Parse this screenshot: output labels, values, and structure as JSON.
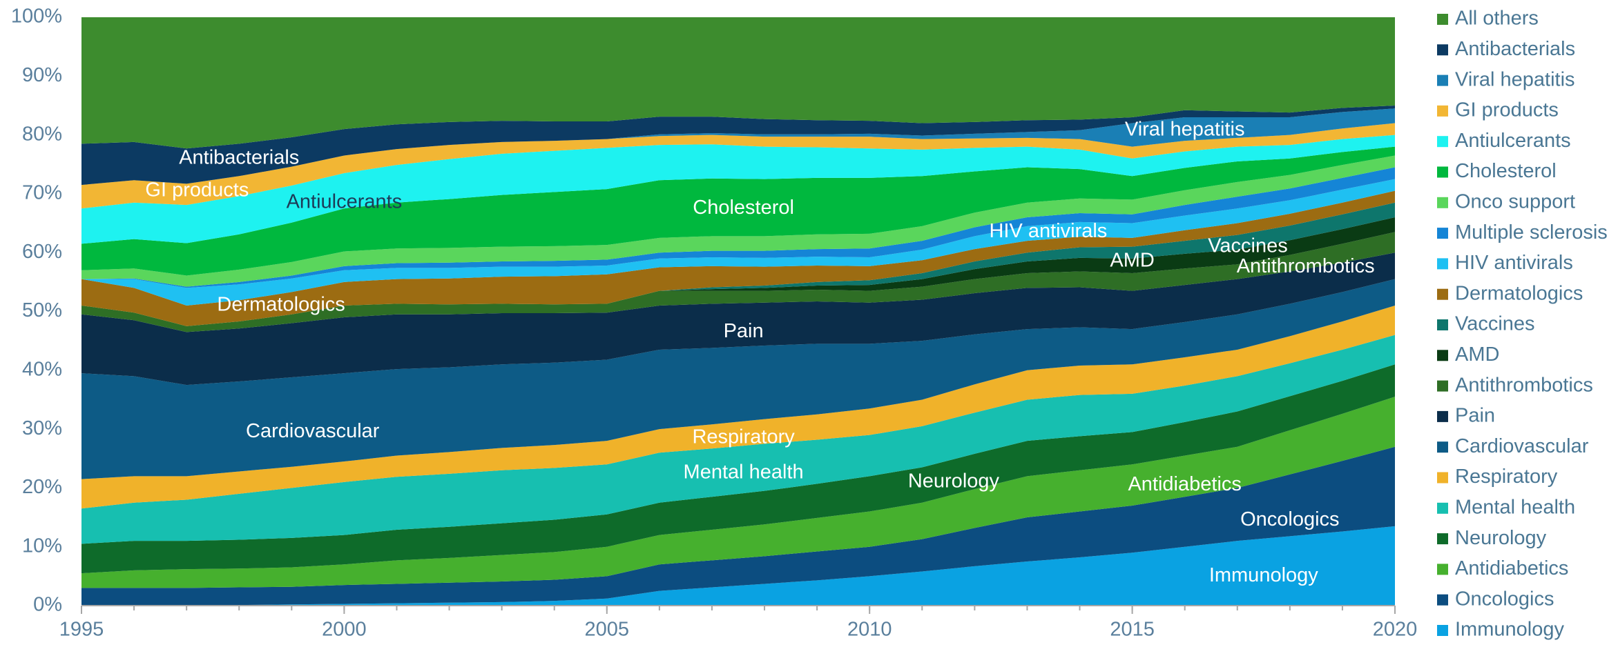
{
  "chart_data": {
    "type": "stacked_area",
    "x": [
      1995,
      1996,
      1997,
      1998,
      1999,
      2000,
      2001,
      2002,
      2003,
      2004,
      2005,
      2006,
      2007,
      2008,
      2009,
      2010,
      2011,
      2012,
      2013,
      2014,
      2015,
      2016,
      2017,
      2018,
      2019,
      2020
    ],
    "xlim": [
      1995,
      2020
    ],
    "xticks": [
      1995,
      2000,
      2005,
      2010,
      2015,
      2020
    ],
    "ylim": [
      0,
      100
    ],
    "yticks": [
      {
        "value": 0,
        "label": "0%"
      },
      {
        "value": 10,
        "label": "10%"
      },
      {
        "value": 20,
        "label": "20%"
      },
      {
        "value": 30,
        "label": "30%"
      },
      {
        "value": 40,
        "label": "40%"
      },
      {
        "value": 50,
        "label": "50%"
      },
      {
        "value": 60,
        "label": "60%"
      },
      {
        "value": 70,
        "label": "70%"
      },
      {
        "value": 80,
        "label": "80%"
      },
      {
        "value": 90,
        "label": "90%"
      },
      {
        "value": 100,
        "label": "100%"
      }
    ],
    "legend": "right",
    "series": [
      {
        "name": "All others",
        "color": "#3d8c2e",
        "values": [
          21.5,
          21.2,
          22.3,
          21.5,
          20.4,
          19,
          18.2,
          17.8,
          17.6,
          17.7,
          17.7,
          16.9,
          16.9,
          17.3,
          17.5,
          17.6,
          18,
          17.8,
          17.5,
          17.4,
          17,
          15.8,
          16,
          16.2,
          15.4,
          15
        ]
      },
      {
        "name": "Antibacterials",
        "color": "#0c3a62",
        "values": [
          7,
          6.5,
          6,
          5.5,
          5,
          4.5,
          4.2,
          3.9,
          3.6,
          3.3,
          3,
          3,
          2.8,
          2.6,
          2.4,
          2.2,
          2.1,
          2,
          2,
          1.8,
          1,
          1.2,
          1,
          0.8,
          0.7,
          0.5
        ]
      },
      {
        "name": "Viral hepatitis",
        "color": "#1a7fb5",
        "values": [
          0,
          0,
          0,
          0,
          0,
          0,
          0,
          0,
          0,
          0,
          0,
          0.3,
          0.3,
          0.4,
          0.4,
          0.5,
          0.6,
          0.8,
          1,
          1.5,
          4,
          4,
          3.5,
          3,
          2.8,
          2.5
        ]
      },
      {
        "name": "GI products",
        "color": "#f2b634",
        "values": [
          4,
          3.8,
          3.6,
          3.4,
          3.2,
          3,
          2.7,
          2.4,
          2,
          1.7,
          1.5,
          1.5,
          1.6,
          1.7,
          1.8,
          2,
          1.8,
          1.6,
          1.5,
          1.8,
          2,
          1.8,
          1.5,
          1.7,
          1.8,
          2
        ]
      },
      {
        "name": "Antiulcerants",
        "color": "#1ef2f0",
        "values": [
          6,
          6.2,
          6.5,
          6.5,
          6.3,
          6,
          6.4,
          6.8,
          7,
          7,
          7,
          6,
          5.8,
          5.5,
          5.2,
          5,
          4.5,
          4,
          3.5,
          3.3,
          3,
          2.8,
          2.5,
          2.3,
          2.2,
          2
        ]
      },
      {
        "name": "Cholesterol",
        "color": "#00b83e",
        "values": [
          4.5,
          5,
          5.5,
          6,
          6.7,
          7.3,
          7.8,
          8.3,
          8.8,
          9.2,
          9.5,
          9.8,
          9.8,
          9.7,
          9.6,
          9.5,
          8.5,
          7,
          6,
          5,
          4,
          3.8,
          3.5,
          2.8,
          2.2,
          1.5
        ]
      },
      {
        "name": "Onco support",
        "color": "#5ad65c",
        "values": [
          1.5,
          1.7,
          1.9,
          2.1,
          2.3,
          2.5,
          2.5,
          2.5,
          2.5,
          2.5,
          2.5,
          2.5,
          2.5,
          2.5,
          2.5,
          2.5,
          2.5,
          2.5,
          2.5,
          2.5,
          2.5,
          2.5,
          2.5,
          2.3,
          2.2,
          2
        ]
      },
      {
        "name": "Multiple sclerosis",
        "color": "#1585d6",
        "values": [
          0,
          0.1,
          0.2,
          0.4,
          0.5,
          0.7,
          0.8,
          0.9,
          0.9,
          1,
          1,
          1,
          1.1,
          1.2,
          1.3,
          1.5,
          1.5,
          1.5,
          1.5,
          1.5,
          1.5,
          1.8,
          2,
          2,
          2,
          2
        ]
      },
      {
        "name": "HIV antivirals",
        "color": "#1fc0f2",
        "values": [
          0,
          1.5,
          3,
          2.7,
          2.3,
          2,
          1.9,
          1.8,
          1.7,
          1.6,
          1.5,
          1.5,
          1.5,
          1.5,
          1.5,
          1.5,
          1.8,
          2.2,
          2.5,
          2.5,
          2.5,
          2.5,
          2.5,
          2.3,
          2.2,
          2
        ]
      },
      {
        "name": "Dermatologics",
        "color": "#9c6c12",
        "values": [
          4.5,
          4.2,
          3.5,
          3.6,
          3.8,
          4,
          4.2,
          4.4,
          4.6,
          4.8,
          5,
          4,
          3.6,
          3.2,
          2.8,
          2.4,
          2.2,
          2.1,
          2,
          1.8,
          1.5,
          1.8,
          2,
          2,
          2,
          2
        ]
      },
      {
        "name": "Vaccines",
        "color": "#0e766c",
        "values": [
          0,
          0,
          0,
          0,
          0,
          0,
          0,
          0,
          0,
          0,
          0,
          0,
          0.3,
          0.4,
          0.6,
          0.8,
          1,
          1.3,
          1.5,
          1.8,
          2,
          2.2,
          2.5,
          2.5,
          2.5,
          2.5
        ]
      },
      {
        "name": "AMD",
        "color": "#0a3b14",
        "values": [
          0,
          0,
          0,
          0,
          0,
          0,
          0,
          0,
          0,
          0,
          0,
          0,
          0.3,
          0.5,
          0.7,
          1,
          1.3,
          1.7,
          2,
          2.3,
          2.5,
          2.5,
          2.5,
          2.5,
          2.5,
          2.5
        ]
      },
      {
        "name": "Antithrombotics",
        "color": "#2e6e25",
        "values": [
          1.5,
          1.3,
          1,
          1.2,
          1.5,
          2,
          1.8,
          1.7,
          1.6,
          1.5,
          1.5,
          2.5,
          2.2,
          2,
          2,
          2,
          2.2,
          2.4,
          2.5,
          2.7,
          3,
          2.8,
          2.5,
          2.8,
          3.2,
          3.5
        ]
      },
      {
        "name": "Pain",
        "color": "#0b2d4a",
        "values": [
          10,
          9.5,
          9,
          9,
          9.2,
          9.5,
          9.3,
          9,
          8.7,
          8.4,
          8,
          7.5,
          7.5,
          7.3,
          7.2,
          7,
          7,
          7,
          7,
          6.8,
          6.5,
          6.3,
          6,
          5.5,
          5,
          4.5
        ]
      },
      {
        "name": "Cardiovascular",
        "color": "#0d5b86",
        "values": [
          18,
          17,
          15.5,
          15.3,
          15.2,
          15,
          14.7,
          14.4,
          14.2,
          14,
          13.8,
          13.5,
          13,
          12.5,
          12,
          11,
          10,
          8.5,
          7,
          6.5,
          6,
          6,
          6,
          5.5,
          5,
          4.5
        ]
      },
      {
        "name": "Respiratory",
        "color": "#f0b22a",
        "values": [
          5,
          4.5,
          4,
          3.8,
          3.6,
          3.5,
          3.6,
          3.7,
          3.8,
          3.9,
          4,
          4,
          4.1,
          4.2,
          4.3,
          4.5,
          4.5,
          4.8,
          5,
          5,
          5,
          4.8,
          4.5,
          4.6,
          4.8,
          5
        ]
      },
      {
        "name": "Mental health",
        "color": "#17bfb0",
        "values": [
          6,
          6.5,
          7,
          7.8,
          8.5,
          9,
          9,
          9,
          9,
          8.8,
          8.5,
          8.5,
          8.2,
          8,
          7.5,
          7,
          7,
          7,
          7,
          7,
          6.5,
          6.2,
          6,
          5.6,
          5.3,
          5
        ]
      },
      {
        "name": "Neurology",
        "color": "#0e6b2a",
        "values": [
          5,
          5,
          4.8,
          4.9,
          5,
          5,
          5.2,
          5.3,
          5.4,
          5.5,
          5.5,
          5.5,
          5.6,
          5.7,
          5.8,
          6,
          6,
          6,
          6,
          5.8,
          5.5,
          5.7,
          6,
          5.8,
          5.6,
          5.5
        ]
      },
      {
        "name": "Antidiabetics",
        "color": "#46b02e",
        "values": [
          2.5,
          3,
          3.2,
          3.2,
          3.3,
          3.5,
          4,
          4.2,
          4.5,
          4.7,
          5,
          5,
          5.2,
          5.4,
          5.7,
          6,
          6.2,
          6.6,
          7,
          7,
          7,
          7,
          7,
          7.5,
          8,
          8.5
        ]
      },
      {
        "name": "Oncologics",
        "color": "#0c4d80",
        "values": [
          3,
          3,
          3,
          3,
          3,
          3.2,
          3.3,
          3.4,
          3.5,
          3.6,
          3.8,
          4.5,
          4.6,
          4.7,
          4.9,
          5,
          5.5,
          6.5,
          7.5,
          7.8,
          8,
          8.5,
          9,
          10.5,
          12,
          13.5
        ]
      },
      {
        "name": "Immunology",
        "color": "#0aa2e2",
        "values": [
          0,
          0,
          0,
          0.1,
          0.2,
          0.3,
          0.4,
          0.5,
          0.6,
          0.8,
          1.2,
          2.5,
          3.1,
          3.7,
          4.3,
          5,
          5.8,
          6.7,
          7.5,
          8.2,
          9,
          10,
          11,
          11.8,
          12.6,
          13.5
        ]
      }
    ]
  }
}
